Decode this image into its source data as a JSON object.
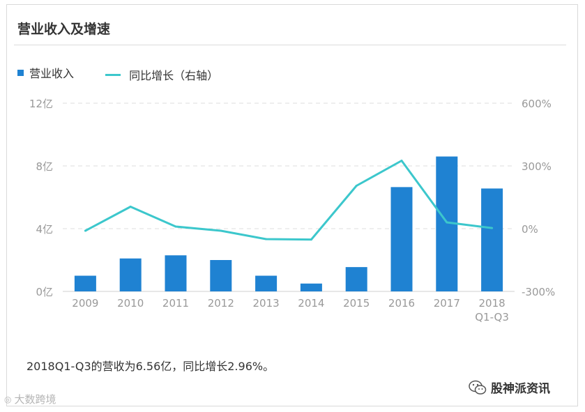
{
  "header": {
    "title": "营业收入及增速"
  },
  "legend": {
    "bar_label": "营业收入",
    "line_label": "同比增长（右轴）"
  },
  "caption": "2018Q1-Q3的营收为6.56亿，同比增长2.96%。",
  "brand": {
    "name": "股神派资讯",
    "icon": "wechat-icon"
  },
  "watermark": {
    "text": "大数跨境",
    "icon": "logo-mark"
  },
  "colors": {
    "bar": "#1f82d2",
    "line": "#3cc7cc",
    "grid": "#e3e3e3",
    "axis_text": "#999999"
  },
  "chart_data": {
    "type": "bar",
    "categories": [
      "2009",
      "2010",
      "2011",
      "2012",
      "2013",
      "2014",
      "2015",
      "2016",
      "2017",
      "2018\nQ1-Q3"
    ],
    "series": [
      {
        "name": "营业收入",
        "type": "bar",
        "axis": "left",
        "values": [
          1.0,
          2.1,
          2.3,
          2.0,
          1.0,
          0.5,
          1.55,
          6.65,
          8.6,
          6.56
        ]
      },
      {
        "name": "同比增长（右轴）",
        "type": "line",
        "axis": "right",
        "values": [
          -10,
          105,
          10,
          -10,
          -50,
          -52,
          205,
          325,
          30,
          2.96
        ]
      }
    ],
    "y_left": {
      "ticks": [
        "0亿",
        "4亿",
        "8亿",
        "12亿"
      ],
      "ylim": [
        0,
        12
      ]
    },
    "y_right": {
      "ticks": [
        "-300%",
        "0%",
        "300%",
        "600%"
      ],
      "ylim": [
        -300,
        600
      ]
    },
    "grid": true,
    "legend_position": "top-left"
  }
}
